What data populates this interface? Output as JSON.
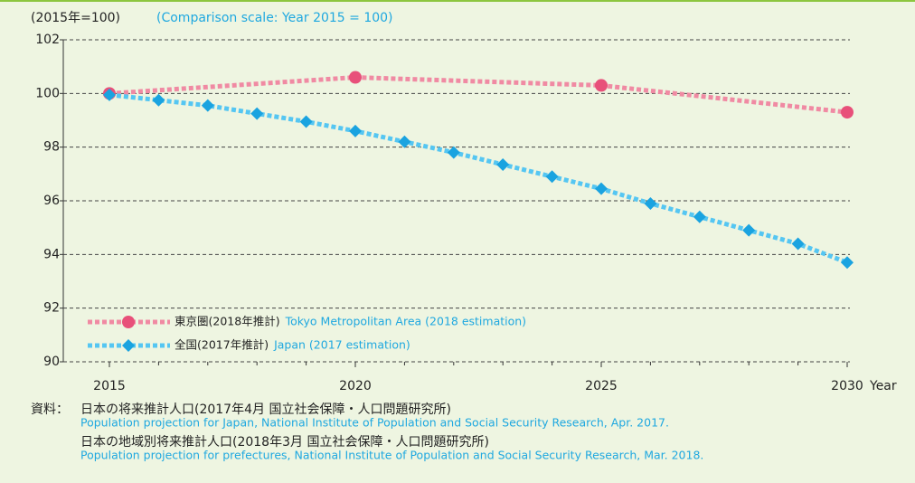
{
  "chart_data": {
    "type": "line",
    "y_label": "(2015年=100)",
    "y_label_en": "(Comparison scale: Year 2015 = 100)",
    "x_label": "Year",
    "xlim": [
      2015,
      2030
    ],
    "xticks": [
      2015,
      2020,
      2025,
      2030
    ],
    "ylim": [
      90,
      102
    ],
    "yticks": [
      90,
      92,
      94,
      96,
      98,
      100,
      102
    ],
    "grid": true,
    "series": [
      {
        "name": "東京圏(2018年推計)",
        "name_en": "Tokyo Metropolitan Area (2018 estimation)",
        "color": "#e8507a",
        "line_color": "#f08aa3",
        "marker": "circle",
        "x": [
          2015,
          2020,
          2025,
          2030
        ],
        "values": [
          100.0,
          100.6,
          100.3,
          99.3
        ]
      },
      {
        "name": "全国(2017年推計)",
        "name_en": "Japan (2017 estimation)",
        "color": "#1aa3e0",
        "line_color": "#55c6f2",
        "marker": "diamond",
        "x": [
          2015,
          2016,
          2017,
          2018,
          2019,
          2020,
          2021,
          2022,
          2023,
          2024,
          2025,
          2026,
          2027,
          2028,
          2029,
          2030
        ],
        "values": [
          99.95,
          99.75,
          99.55,
          99.25,
          98.95,
          98.6,
          98.2,
          97.8,
          97.35,
          96.9,
          96.45,
          95.9,
          95.4,
          94.9,
          94.4,
          93.7
        ]
      }
    ],
    "source_label": "資料：",
    "sources": [
      {
        "ja": "日本の将来推計人口(2017年4月 国立社会保障・人口問題研究所)",
        "en": "Population projection for Japan, National Institute of Population and Social Security Research, Apr. 2017."
      },
      {
        "ja": "日本の地域別将来推計人口(2018年3月 国立社会保障・人口問題研究所)",
        "en": "Population projection for prefectures, National Institute of Population and Social Security Research, Mar. 2018."
      }
    ]
  }
}
